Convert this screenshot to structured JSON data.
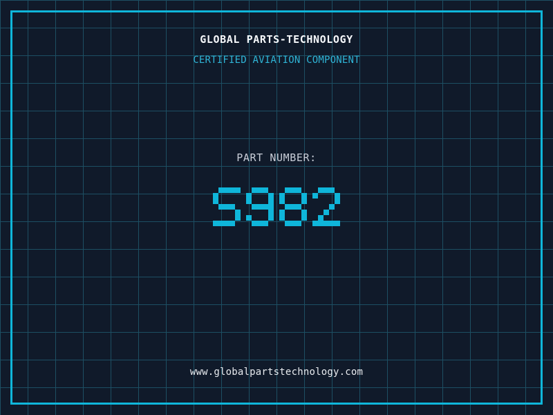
{
  "theme": {
    "background": "#101a2a",
    "grid_line": "#1d4f63",
    "frame_color": "#0fb6da",
    "accent_cyan": "#2fb4d6",
    "number_color": "#0fb6da",
    "title_color": "#f5f7fa",
    "label_color": "#c9ced8",
    "url_color": "#e8ebef"
  },
  "header": {
    "title": "GLOBAL PARTS-TECHNOLOGY",
    "subtitle": "CERTIFIED AVIATION COMPONENT"
  },
  "part_number": {
    "label": "PART NUMBER:",
    "value": "S982"
  },
  "footer": {
    "website": "www.globalpartstechnology.com"
  }
}
